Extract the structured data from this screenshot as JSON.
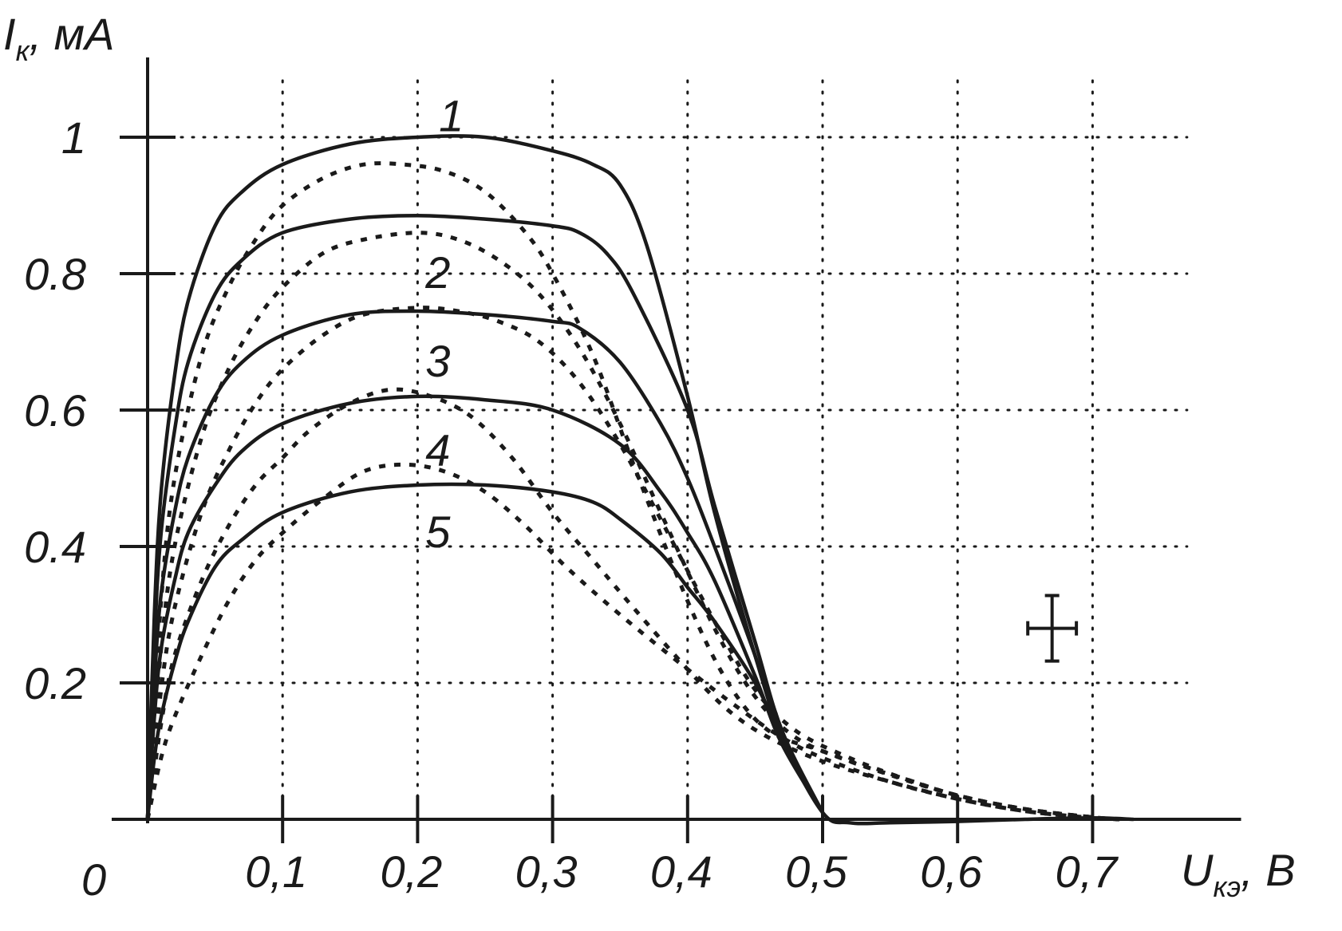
{
  "chart_data": {
    "type": "line",
    "xlabel": {
      "main": "U",
      "sub": "кэ",
      "unit": ", В"
    },
    "ylabel": {
      "main": "I",
      "sub": "к",
      "unit": ", мА"
    },
    "xlim": [
      0,
      0.81
    ],
    "ylim": [
      0,
      1.1
    ],
    "origin_label": "0",
    "x_ticks": [
      {
        "value": 0.1,
        "label": "0,1"
      },
      {
        "value": 0.2,
        "label": "0,2"
      },
      {
        "value": 0.3,
        "label": "0,3"
      },
      {
        "value": 0.4,
        "label": "0,4"
      },
      {
        "value": 0.5,
        "label": "0,5"
      },
      {
        "value": 0.6,
        "label": "0,6"
      },
      {
        "value": 0.7,
        "label": "0,7"
      }
    ],
    "y_ticks": [
      {
        "value": 0.2,
        "label": "0.2"
      },
      {
        "value": 0.4,
        "label": "0.4"
      },
      {
        "value": 0.6,
        "label": "0.6"
      },
      {
        "value": 0.8,
        "label": "0.8"
      },
      {
        "value": 1.0,
        "label": "1"
      }
    ],
    "grid": "dotted",
    "series": [
      {
        "name": "1",
        "style": "solid",
        "x": [
          0,
          0.005,
          0.01,
          0.02,
          0.03,
          0.05,
          0.07,
          0.1,
          0.15,
          0.2,
          0.25,
          0.3,
          0.33,
          0.35,
          0.37,
          0.4,
          0.42,
          0.45,
          0.47,
          0.5,
          0.52,
          0.55,
          0.6,
          0.65,
          0.7,
          0.73
        ],
        "y": [
          0,
          0.3,
          0.48,
          0.65,
          0.76,
          0.87,
          0.92,
          0.96,
          0.99,
          1.0,
          1.0,
          0.98,
          0.96,
          0.93,
          0.84,
          0.62,
          0.45,
          0.24,
          0.12,
          0.01,
          -0.005,
          -0.005,
          -0.003,
          0,
          0.002,
          0
        ]
      },
      {
        "name": "2",
        "style": "solid",
        "x": [
          0,
          0.005,
          0.01,
          0.02,
          0.03,
          0.05,
          0.07,
          0.1,
          0.15,
          0.2,
          0.25,
          0.3,
          0.32,
          0.34,
          0.36,
          0.4,
          0.42,
          0.45,
          0.47,
          0.5
        ],
        "y": [
          0,
          0.26,
          0.42,
          0.57,
          0.67,
          0.77,
          0.82,
          0.86,
          0.88,
          0.885,
          0.88,
          0.87,
          0.86,
          0.83,
          0.77,
          0.6,
          0.46,
          0.26,
          0.13,
          0.01
        ]
      },
      {
        "name": "3",
        "style": "solid",
        "x": [
          0,
          0.005,
          0.01,
          0.02,
          0.03,
          0.05,
          0.07,
          0.1,
          0.15,
          0.2,
          0.25,
          0.3,
          0.32,
          0.35,
          0.38,
          0.4,
          0.42,
          0.45,
          0.47,
          0.5
        ],
        "y": [
          0,
          0.2,
          0.33,
          0.45,
          0.53,
          0.62,
          0.67,
          0.71,
          0.74,
          0.745,
          0.74,
          0.73,
          0.72,
          0.67,
          0.58,
          0.5,
          0.4,
          0.24,
          0.12,
          0.01
        ]
      },
      {
        "name": "4",
        "style": "solid",
        "x": [
          0,
          0.005,
          0.01,
          0.02,
          0.03,
          0.05,
          0.07,
          0.1,
          0.15,
          0.2,
          0.25,
          0.3,
          0.35,
          0.38,
          0.4,
          0.42,
          0.45,
          0.47,
          0.5
        ],
        "y": [
          0,
          0.15,
          0.25,
          0.35,
          0.42,
          0.49,
          0.54,
          0.58,
          0.61,
          0.62,
          0.615,
          0.6,
          0.55,
          0.48,
          0.42,
          0.35,
          0.21,
          0.11,
          0.01
        ]
      },
      {
        "name": "5",
        "style": "solid",
        "x": [
          0,
          0.005,
          0.01,
          0.02,
          0.03,
          0.05,
          0.07,
          0.1,
          0.15,
          0.2,
          0.25,
          0.3,
          0.33,
          0.35,
          0.38,
          0.4,
          0.42,
          0.45,
          0.47,
          0.5
        ],
        "y": [
          0,
          0.09,
          0.15,
          0.23,
          0.29,
          0.37,
          0.41,
          0.45,
          0.48,
          0.49,
          0.49,
          0.48,
          0.465,
          0.44,
          0.39,
          0.34,
          0.29,
          0.2,
          0.12,
          0.01
        ]
      },
      {
        "name": "",
        "style": "dashed",
        "x": [
          0,
          0.01,
          0.02,
          0.04,
          0.06,
          0.08,
          0.1,
          0.13,
          0.16,
          0.19,
          0.22,
          0.25,
          0.28,
          0.3,
          0.33,
          0.36,
          0.4,
          0.43,
          0.46,
          0.5,
          0.55,
          0.6,
          0.65,
          0.7,
          0.72
        ],
        "y": [
          0,
          0.32,
          0.5,
          0.68,
          0.78,
          0.85,
          0.9,
          0.94,
          0.96,
          0.96,
          0.95,
          0.92,
          0.86,
          0.8,
          0.68,
          0.52,
          0.32,
          0.2,
          0.13,
          0.1,
          0.065,
          0.035,
          0.015,
          0.003,
          0
        ]
      },
      {
        "name": "",
        "style": "dashed",
        "x": [
          0,
          0.01,
          0.02,
          0.04,
          0.06,
          0.08,
          0.1,
          0.13,
          0.16,
          0.2,
          0.23,
          0.26,
          0.29,
          0.32,
          0.35,
          0.38,
          0.42,
          0.45,
          0.48,
          0.52,
          0.56,
          0.6,
          0.65,
          0.7,
          0.72
        ],
        "y": [
          0,
          0.25,
          0.4,
          0.56,
          0.66,
          0.73,
          0.78,
          0.83,
          0.85,
          0.86,
          0.85,
          0.82,
          0.77,
          0.69,
          0.58,
          0.45,
          0.28,
          0.18,
          0.12,
          0.085,
          0.06,
          0.035,
          0.015,
          0.003,
          0
        ]
      },
      {
        "name": "",
        "style": "dashed",
        "x": [
          0,
          0.01,
          0.02,
          0.04,
          0.06,
          0.08,
          0.1,
          0.13,
          0.16,
          0.2,
          0.23,
          0.26,
          0.29,
          0.32,
          0.35,
          0.38,
          0.42,
          0.45,
          0.48,
          0.52,
          0.56,
          0.6,
          0.65,
          0.7,
          0.72
        ],
        "y": [
          0,
          0.19,
          0.31,
          0.45,
          0.54,
          0.61,
          0.66,
          0.71,
          0.74,
          0.75,
          0.745,
          0.73,
          0.7,
          0.64,
          0.55,
          0.44,
          0.29,
          0.19,
          0.13,
          0.09,
          0.06,
          0.035,
          0.015,
          0.003,
          0
        ]
      },
      {
        "name": "",
        "style": "dashed",
        "x": [
          0,
          0.01,
          0.02,
          0.04,
          0.06,
          0.08,
          0.1,
          0.12,
          0.15,
          0.18,
          0.21,
          0.24,
          0.27,
          0.3,
          0.33,
          0.36,
          0.4,
          0.43,
          0.46,
          0.5,
          0.55,
          0.6,
          0.65,
          0.7
        ],
        "y": [
          0,
          0.14,
          0.24,
          0.35,
          0.43,
          0.49,
          0.53,
          0.57,
          0.61,
          0.63,
          0.62,
          0.59,
          0.53,
          0.45,
          0.38,
          0.31,
          0.22,
          0.16,
          0.12,
          0.085,
          0.055,
          0.03,
          0.012,
          0.002
        ]
      },
      {
        "name": "",
        "style": "dashed",
        "x": [
          0,
          0.01,
          0.02,
          0.04,
          0.06,
          0.08,
          0.1,
          0.13,
          0.16,
          0.19,
          0.22,
          0.25,
          0.28,
          0.31,
          0.35,
          0.4,
          0.44,
          0.47,
          0.5,
          0.55,
          0.6,
          0.65,
          0.7
        ],
        "y": [
          0,
          0.09,
          0.15,
          0.24,
          0.32,
          0.38,
          0.42,
          0.47,
          0.51,
          0.52,
          0.51,
          0.48,
          0.43,
          0.37,
          0.3,
          0.22,
          0.16,
          0.12,
          0.09,
          0.055,
          0.03,
          0.012,
          0.002
        ]
      }
    ],
    "curve_labels": [
      {
        "text": "1",
        "x": 0.225,
        "y": 1.03
      },
      {
        "text": "2",
        "x": 0.215,
        "y": 0.8
      },
      {
        "text": "3",
        "x": 0.215,
        "y": 0.67
      },
      {
        "text": "4",
        "x": 0.215,
        "y": 0.54
      },
      {
        "text": "5",
        "x": 0.215,
        "y": 0.42
      }
    ],
    "error_bar": {
      "x": 0.67,
      "y": 0.28,
      "xerr": 0.018,
      "yerr": 0.048
    }
  }
}
